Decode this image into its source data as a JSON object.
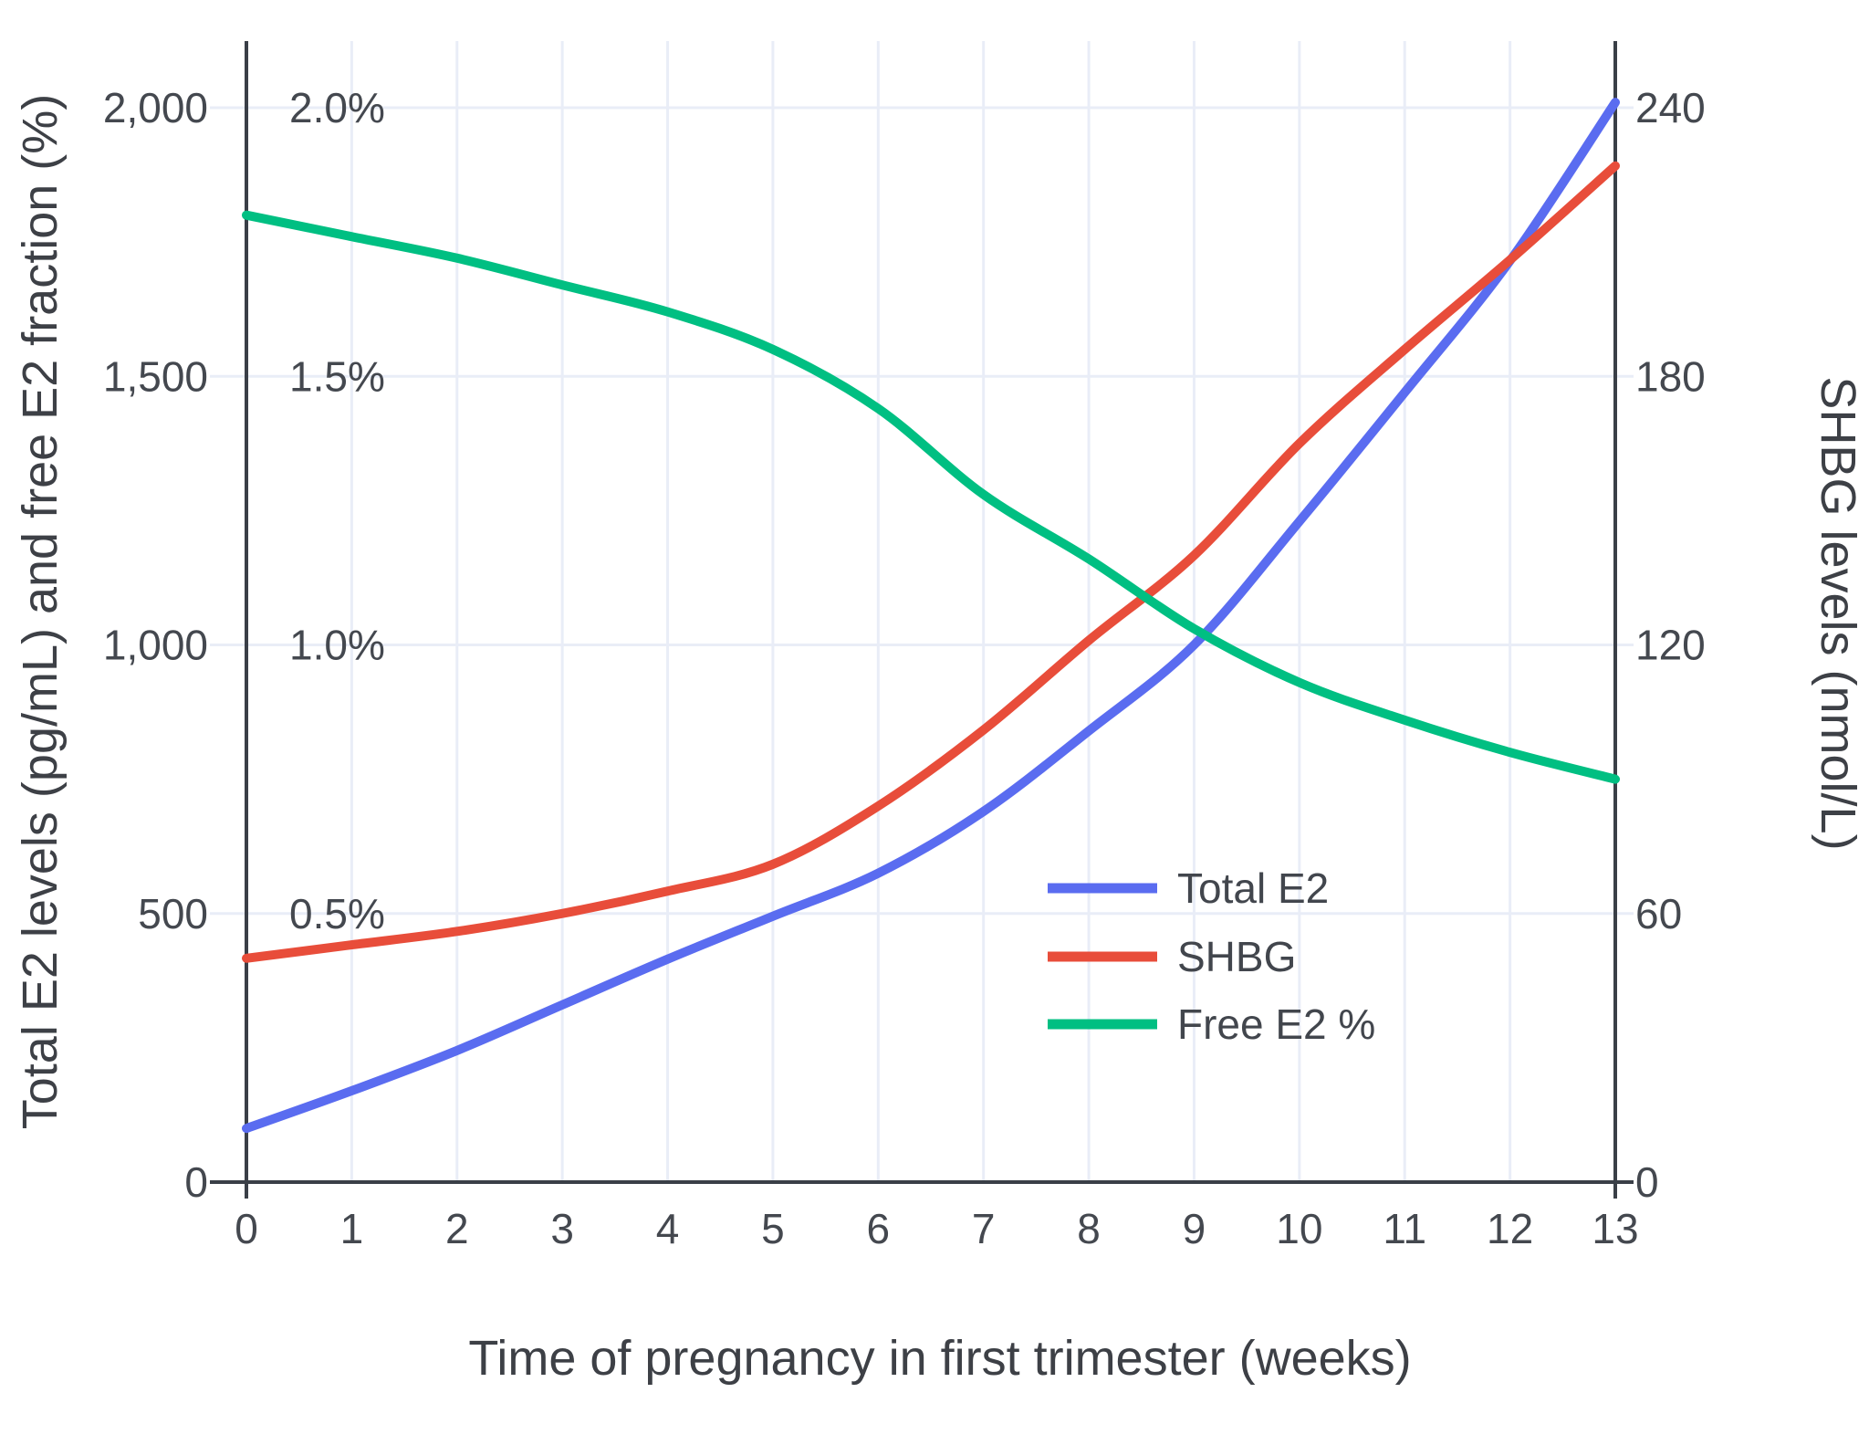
{
  "style": {
    "background": "#ffffff",
    "grid_color": "#e9edf7",
    "axis_color": "#3a3f47",
    "text_color": "#42464d"
  },
  "chart_data": {
    "type": "line",
    "title": "",
    "xlabel": "Time of pregnancy in first trimester (weeks)",
    "ylabel_left": "Total E2 levels (pg/mL) and free E2 fraction (%)",
    "ylabel_right": "SHBG levels (nmol/L)",
    "x": [
      0,
      1,
      2,
      3,
      4,
      5,
      6,
      7,
      8,
      9,
      10,
      11,
      12,
      13
    ],
    "x_tick_labels": [
      "0",
      "1",
      "2",
      "3",
      "4",
      "5",
      "6",
      "7",
      "8",
      "9",
      "10",
      "11",
      "12",
      "13"
    ],
    "xlim": [
      0,
      13
    ],
    "ylim_left": [
      0,
      2000
    ],
    "ylim_right": [
      0,
      240
    ],
    "left_tick_labels": [
      "0",
      "500",
      "1,000",
      "1,500",
      "2,000"
    ],
    "left_tick_values": [
      0,
      500,
      1000,
      1500,
      2000
    ],
    "percent_tick_labels": [
      "0.5%",
      "1.0%",
      "1.5%",
      "2.0%"
    ],
    "percent_tick_values": [
      0.5,
      1.0,
      1.5,
      2.0
    ],
    "right_tick_labels": [
      "0",
      "60",
      "120",
      "180",
      "240"
    ],
    "right_tick_values": [
      0,
      60,
      120,
      180,
      240
    ],
    "grid": true,
    "legend_position": "inside-right-middle",
    "series": [
      {
        "name": "Total E2",
        "axis": "left",
        "unit": "pg/mL",
        "color": "#5a6cf0",
        "values": [
          100,
          170,
          245,
          330,
          415,
          495,
          575,
          690,
          840,
          1000,
          1230,
          1470,
          1715,
          2010
        ]
      },
      {
        "name": "SHBG",
        "axis": "right",
        "unit": "nmol/L",
        "color": "#e84d3a",
        "values": [
          50,
          53,
          56,
          60,
          65,
          71,
          84,
          101,
          121,
          140,
          165,
          186,
          206,
          227
        ]
      },
      {
        "name": "Free E2 %",
        "axis": "percent",
        "unit": "%",
        "color": "#00bf82",
        "values": [
          1.8,
          1.76,
          1.72,
          1.67,
          1.62,
          1.55,
          1.44,
          1.28,
          1.16,
          1.03,
          0.93,
          0.86,
          0.8,
          0.75
        ]
      }
    ]
  }
}
